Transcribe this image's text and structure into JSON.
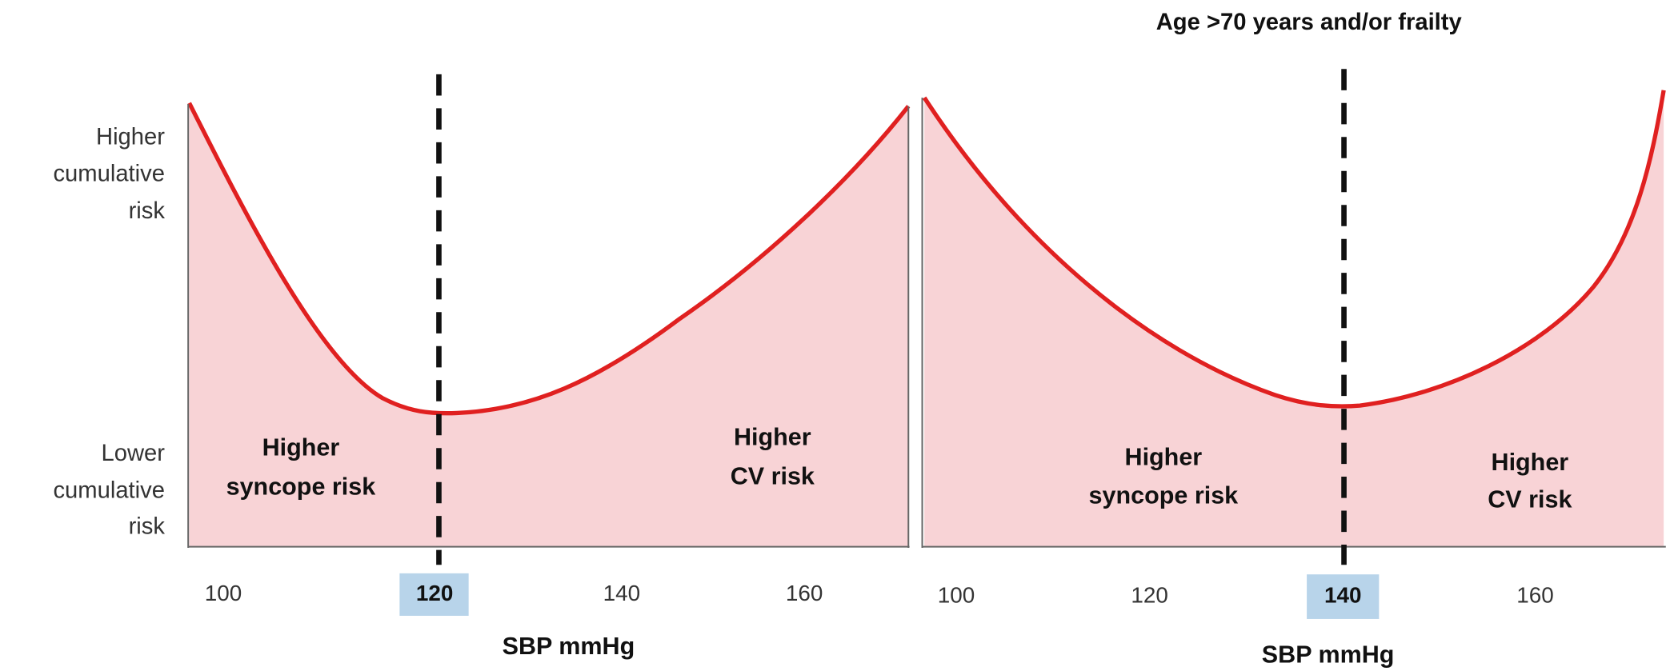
{
  "title": "Age >70 years and/or frailty",
  "y_axis": {
    "higher": [
      "Higher",
      "cumulative",
      "risk"
    ],
    "lower": [
      "Lower",
      "cumulative",
      "risk"
    ]
  },
  "panels": [
    {
      "x_ticks": [
        100,
        120,
        140,
        160
      ],
      "x_axis_label": "SBP mmHg",
      "regions": [
        [
          "Higher",
          "syncope risk"
        ],
        [
          "Higher",
          "CV risk"
        ]
      ]
    },
    {
      "x_ticks": [
        100,
        120,
        140,
        160
      ],
      "x_axis_label": "SBP mmHg",
      "regions": [
        [
          "Higher",
          "syncope risk"
        ],
        [
          "Higher",
          "CV risk"
        ]
      ]
    }
  ]
}
